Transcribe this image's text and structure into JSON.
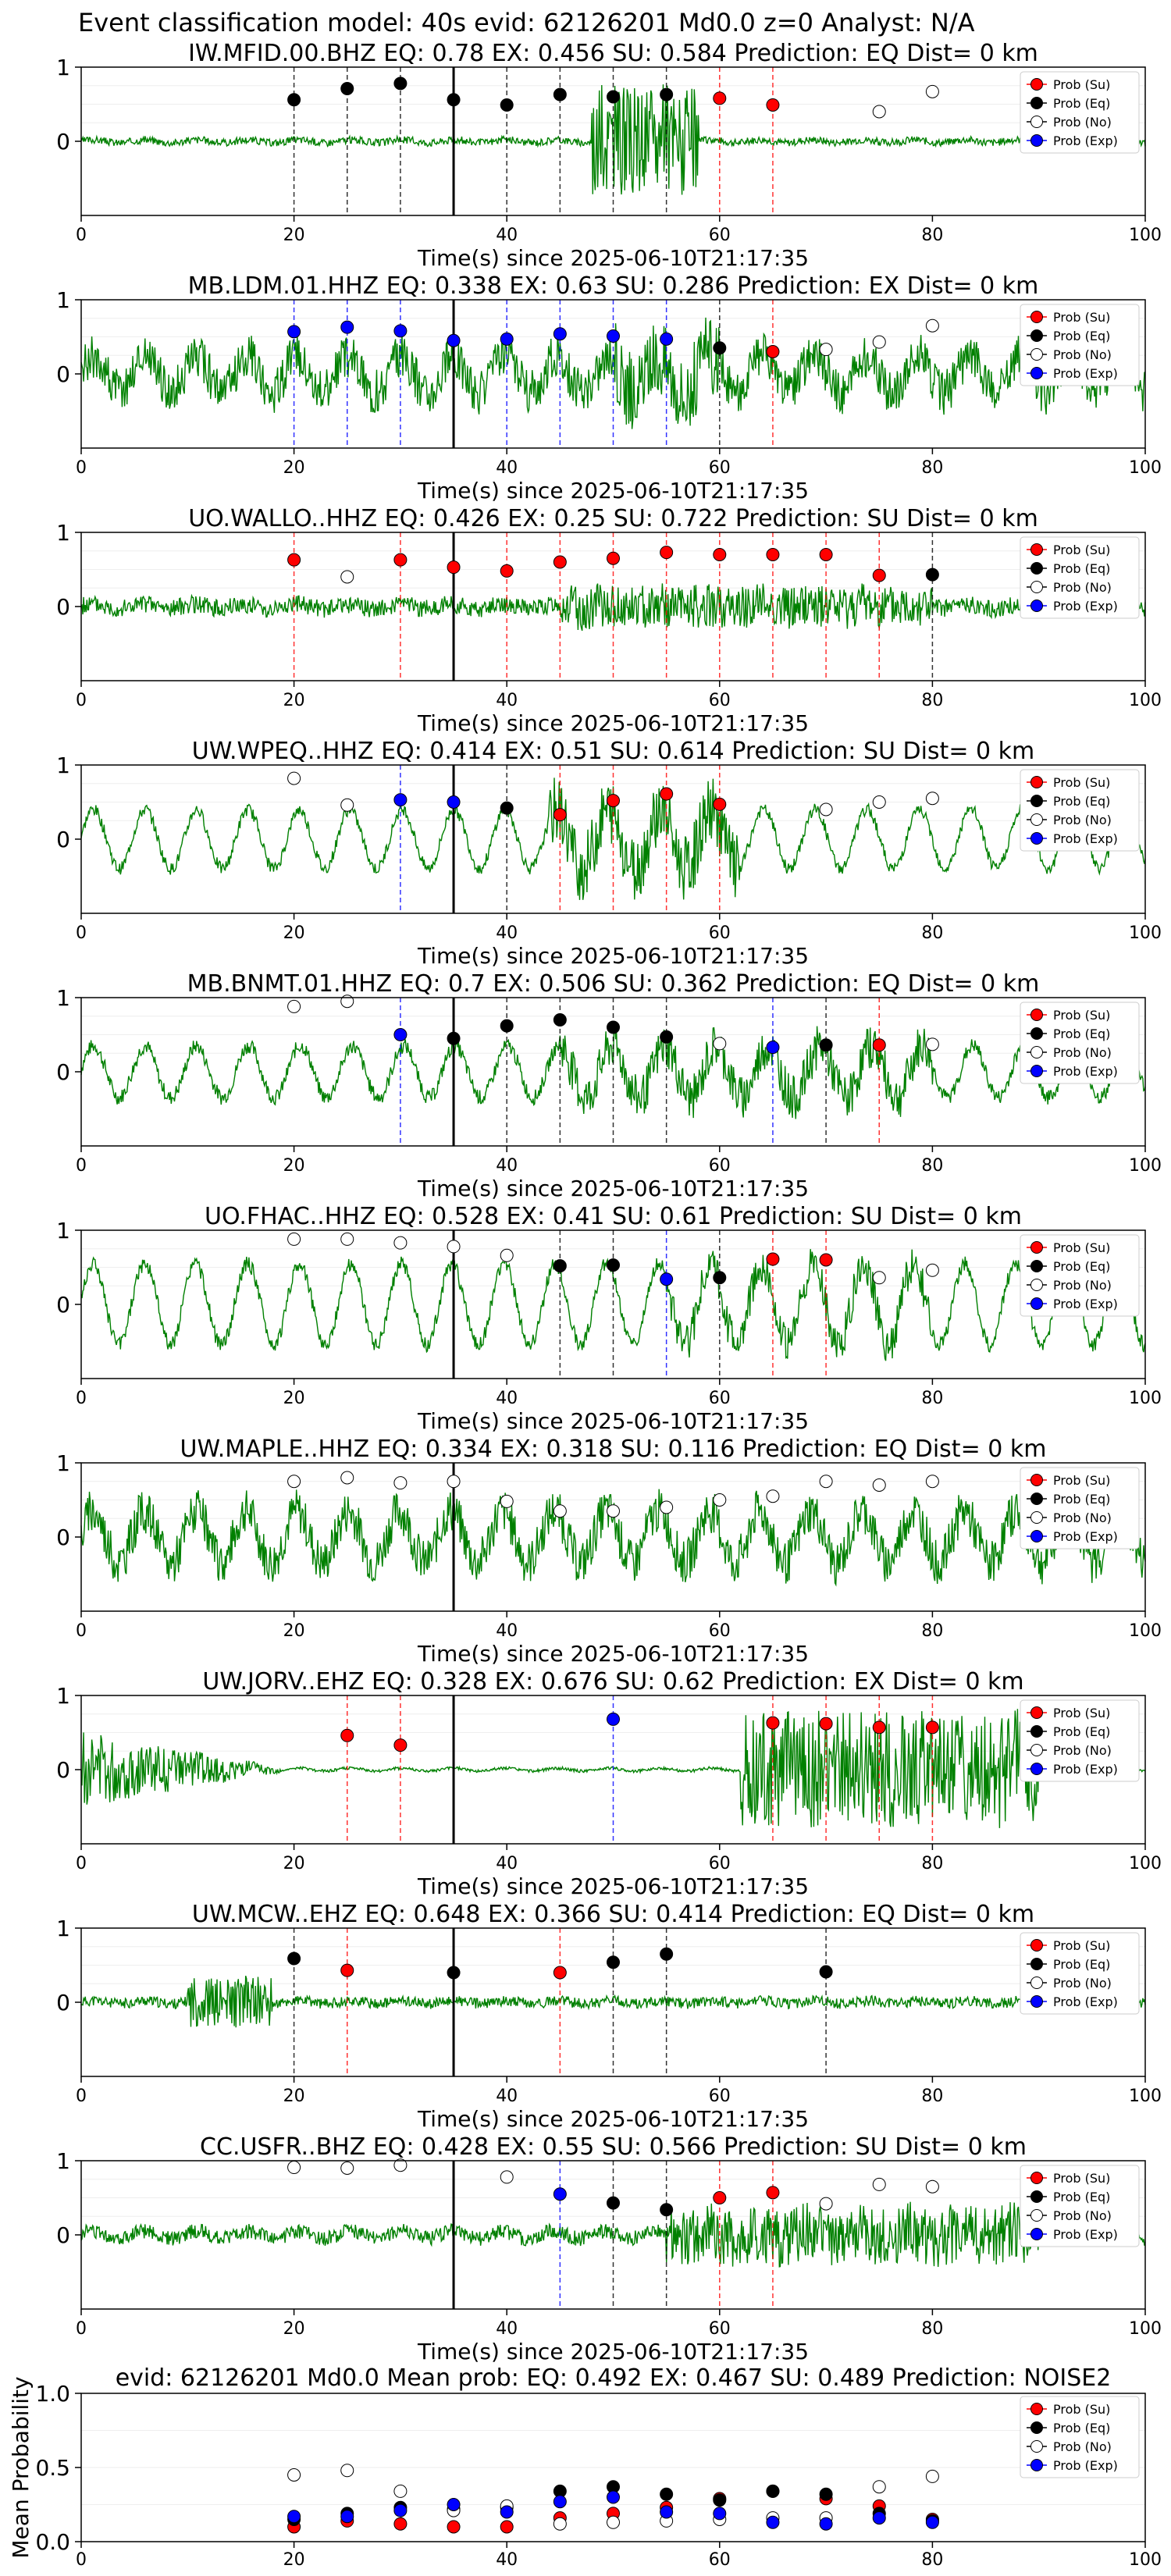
{
  "figure_title": "Event classification model: 40s evid: 62126201 Md0.0 z=0 Analyst: N/A",
  "legend_labels": [
    "Prob (Su)",
    "Prob (Eq)",
    "Prob (No)",
    "Prob (Exp)"
  ],
  "colors": {
    "su": "#ff0000",
    "eq": "#000000",
    "no": "#ffffff",
    "exp": "#0000ff",
    "waveform": "#008000"
  },
  "chart_data": [
    {
      "type": "line+scatter",
      "title": "IW.MFID.00.BHZ   EQ: 0.78   EX: 0.456   SU: 0.584   Prediction: EQ    Dist= 0 km",
      "xlabel": "Time(s) since 2025-06-10T21:17:35",
      "xlim": [
        0,
        100
      ],
      "ylim": [
        -1,
        1
      ],
      "xticks": [
        "0",
        "20",
        "40",
        "60",
        "80",
        "100"
      ],
      "yticks": [
        "0",
        "1"
      ],
      "arrival_time": 35,
      "waveform": {
        "amp": 0.05,
        "burst": [
          48,
          58,
          0.75
        ],
        "osc": 0.02
      },
      "points": [
        {
          "t": 20,
          "p": 0.56,
          "cls": "eq"
        },
        {
          "t": 25,
          "p": 0.71,
          "cls": "eq"
        },
        {
          "t": 30,
          "p": 0.78,
          "cls": "eq"
        },
        {
          "t": 35,
          "p": 0.56,
          "cls": "eq"
        },
        {
          "t": 40,
          "p": 0.49,
          "cls": "eq"
        },
        {
          "t": 45,
          "p": 0.63,
          "cls": "eq"
        },
        {
          "t": 50,
          "p": 0.6,
          "cls": "eq"
        },
        {
          "t": 55,
          "p": 0.63,
          "cls": "eq"
        },
        {
          "t": 60,
          "p": 0.58,
          "cls": "su"
        },
        {
          "t": 65,
          "p": 0.49,
          "cls": "su"
        },
        {
          "t": 75,
          "p": 0.4,
          "cls": "no"
        },
        {
          "t": 80,
          "p": 0.67,
          "cls": "no"
        }
      ]
    },
    {
      "type": "line+scatter",
      "title": "MB.LDM.01.HHZ   EQ: 0.338   EX: 0.63   SU: 0.286   Prediction: EX    Dist= 0 km",
      "xlabel": "Time(s) since 2025-06-10T21:17:35",
      "xlim": [
        0,
        100
      ],
      "ylim": [
        -1,
        1
      ],
      "xticks": [
        "0",
        "20",
        "40",
        "60",
        "80",
        "100"
      ],
      "yticks": [
        "0",
        "1"
      ],
      "arrival_time": 35,
      "waveform": {
        "amp": 0.3,
        "burst": [
          50,
          60,
          0.55
        ],
        "osc": 0.25
      },
      "points": [
        {
          "t": 20,
          "p": 0.57,
          "cls": "exp"
        },
        {
          "t": 25,
          "p": 0.63,
          "cls": "exp"
        },
        {
          "t": 30,
          "p": 0.58,
          "cls": "exp"
        },
        {
          "t": 35,
          "p": 0.45,
          "cls": "exp"
        },
        {
          "t": 40,
          "p": 0.47,
          "cls": "exp"
        },
        {
          "t": 45,
          "p": 0.54,
          "cls": "exp"
        },
        {
          "t": 50,
          "p": 0.51,
          "cls": "exp"
        },
        {
          "t": 55,
          "p": 0.47,
          "cls": "exp"
        },
        {
          "t": 60,
          "p": 0.35,
          "cls": "eq"
        },
        {
          "t": 65,
          "p": 0.3,
          "cls": "su"
        },
        {
          "t": 70,
          "p": 0.33,
          "cls": "no"
        },
        {
          "t": 75,
          "p": 0.43,
          "cls": "no"
        },
        {
          "t": 80,
          "p": 0.65,
          "cls": "no"
        }
      ]
    },
    {
      "type": "line+scatter",
      "title": "UO.WALLO..HHZ   EQ: 0.426   EX: 0.25   SU: 0.722   Prediction: SU    Dist= 0 km",
      "xlabel": "Time(s) since 2025-06-10T21:17:35",
      "xlim": [
        0,
        100
      ],
      "ylim": [
        -1,
        1
      ],
      "xticks": [
        "0",
        "20",
        "40",
        "60",
        "80",
        "100"
      ],
      "yticks": [
        "0",
        "1"
      ],
      "arrival_time": 35,
      "waveform": {
        "amp": 0.12,
        "burst": [
          45,
          80,
          0.3
        ],
        "osc": 0.03
      },
      "points": [
        {
          "t": 20,
          "p": 0.63,
          "cls": "su"
        },
        {
          "t": 25,
          "p": 0.4,
          "cls": "no"
        },
        {
          "t": 30,
          "p": 0.63,
          "cls": "su"
        },
        {
          "t": 35,
          "p": 0.53,
          "cls": "su"
        },
        {
          "t": 40,
          "p": 0.48,
          "cls": "su"
        },
        {
          "t": 45,
          "p": 0.6,
          "cls": "su"
        },
        {
          "t": 50,
          "p": 0.65,
          "cls": "su"
        },
        {
          "t": 55,
          "p": 0.73,
          "cls": "su"
        },
        {
          "t": 60,
          "p": 0.7,
          "cls": "su"
        },
        {
          "t": 65,
          "p": 0.7,
          "cls": "su"
        },
        {
          "t": 70,
          "p": 0.7,
          "cls": "su"
        },
        {
          "t": 75,
          "p": 0.42,
          "cls": "su"
        },
        {
          "t": 80,
          "p": 0.43,
          "cls": "eq"
        }
      ]
    },
    {
      "type": "line+scatter",
      "title": "UW.WPEQ..HHZ   EQ: 0.414   EX: 0.51   SU: 0.614   Prediction: SU    Dist= 0 km",
      "xlabel": "Time(s) since 2025-06-10T21:17:35",
      "xlim": [
        0,
        100
      ],
      "ylim": [
        -1,
        1
      ],
      "xticks": [
        "0",
        "20",
        "40",
        "60",
        "80",
        "100"
      ],
      "yticks": [
        "0",
        "1"
      ],
      "arrival_time": 35,
      "waveform": {
        "amp": 0.08,
        "burst": [
          44,
          62,
          0.45
        ],
        "osc": 0.4
      },
      "points": [
        {
          "t": 20,
          "p": 0.82,
          "cls": "no"
        },
        {
          "t": 25,
          "p": 0.46,
          "cls": "no"
        },
        {
          "t": 30,
          "p": 0.53,
          "cls": "exp"
        },
        {
          "t": 35,
          "p": 0.5,
          "cls": "exp"
        },
        {
          "t": 40,
          "p": 0.42,
          "cls": "eq"
        },
        {
          "t": 45,
          "p": 0.33,
          "cls": "su"
        },
        {
          "t": 50,
          "p": 0.52,
          "cls": "su"
        },
        {
          "t": 55,
          "p": 0.61,
          "cls": "su"
        },
        {
          "t": 60,
          "p": 0.47,
          "cls": "su"
        },
        {
          "t": 70,
          "p": 0.4,
          "cls": "no"
        },
        {
          "t": 75,
          "p": 0.5,
          "cls": "no"
        },
        {
          "t": 80,
          "p": 0.55,
          "cls": "no"
        }
      ]
    },
    {
      "type": "line+scatter",
      "title": "MB.BNMT.01.HHZ   EQ: 0.7   EX: 0.506   SU: 0.362   Prediction: EQ    Dist= 0 km",
      "xlabel": "Time(s) since 2025-06-10T21:17:35",
      "xlim": [
        0,
        100
      ],
      "ylim": [
        -1,
        1
      ],
      "xticks": [
        "0",
        "20",
        "40",
        "60",
        "80",
        "100"
      ],
      "yticks": [
        "0",
        "1"
      ],
      "arrival_time": 35,
      "waveform": {
        "amp": 0.1,
        "burst": [
          45,
          80,
          0.3
        ],
        "osc": 0.35
      },
      "points": [
        {
          "t": 20,
          "p": 0.88,
          "cls": "no"
        },
        {
          "t": 25,
          "p": 0.95,
          "cls": "no"
        },
        {
          "t": 30,
          "p": 0.5,
          "cls": "exp"
        },
        {
          "t": 35,
          "p": 0.45,
          "cls": "eq"
        },
        {
          "t": 40,
          "p": 0.62,
          "cls": "eq"
        },
        {
          "t": 45,
          "p": 0.7,
          "cls": "eq"
        },
        {
          "t": 50,
          "p": 0.6,
          "cls": "eq"
        },
        {
          "t": 55,
          "p": 0.47,
          "cls": "eq"
        },
        {
          "t": 60,
          "p": 0.38,
          "cls": "no"
        },
        {
          "t": 65,
          "p": 0.33,
          "cls": "exp"
        },
        {
          "t": 70,
          "p": 0.36,
          "cls": "eq"
        },
        {
          "t": 75,
          "p": 0.36,
          "cls": "su"
        },
        {
          "t": 80,
          "p": 0.37,
          "cls": "no"
        }
      ]
    },
    {
      "type": "line+scatter",
      "title": "UO.FHAC..HHZ   EQ: 0.528   EX: 0.41   SU: 0.61   Prediction: SU    Dist= 0 km",
      "xlabel": "Time(s) since 2025-06-10T21:17:35",
      "xlim": [
        0,
        100
      ],
      "ylim": [
        -1,
        1
      ],
      "xticks": [
        "0",
        "20",
        "40",
        "60",
        "80",
        "100"
      ],
      "yticks": [
        "0",
        "1"
      ],
      "arrival_time": 35,
      "waveform": {
        "amp": 0.1,
        "burst": [
          55,
          80,
          0.25
        ],
        "osc": 0.55
      },
      "points": [
        {
          "t": 20,
          "p": 0.88,
          "cls": "no"
        },
        {
          "t": 25,
          "p": 0.88,
          "cls": "no"
        },
        {
          "t": 30,
          "p": 0.83,
          "cls": "no"
        },
        {
          "t": 35,
          "p": 0.78,
          "cls": "no"
        },
        {
          "t": 40,
          "p": 0.66,
          "cls": "no"
        },
        {
          "t": 45,
          "p": 0.52,
          "cls": "eq"
        },
        {
          "t": 50,
          "p": 0.53,
          "cls": "eq"
        },
        {
          "t": 55,
          "p": 0.34,
          "cls": "exp"
        },
        {
          "t": 60,
          "p": 0.36,
          "cls": "eq"
        },
        {
          "t": 65,
          "p": 0.61,
          "cls": "su"
        },
        {
          "t": 70,
          "p": 0.6,
          "cls": "su"
        },
        {
          "t": 75,
          "p": 0.36,
          "cls": "no"
        },
        {
          "t": 80,
          "p": 0.46,
          "cls": "no"
        }
      ]
    },
    {
      "type": "line+scatter",
      "title": "UW.MAPLE..HHZ   EQ: 0.334   EX: 0.318   SU: 0.116   Prediction: EQ    Dist= 0 km",
      "xlabel": "Time(s) since 2025-06-10T21:17:35",
      "xlim": [
        0,
        100
      ],
      "ylim": [
        -1,
        1
      ],
      "xticks": [
        "0",
        "20",
        "40",
        "60",
        "80",
        "100"
      ],
      "yticks": [
        "0",
        "1"
      ],
      "arrival_time": 35,
      "waveform": {
        "amp": 0.3,
        "burst": [
          0,
          0,
          0
        ],
        "osc": 0.35
      },
      "points": [
        {
          "t": 20,
          "p": 0.75,
          "cls": "no"
        },
        {
          "t": 25,
          "p": 0.8,
          "cls": "no"
        },
        {
          "t": 30,
          "p": 0.73,
          "cls": "no"
        },
        {
          "t": 35,
          "p": 0.75,
          "cls": "no"
        },
        {
          "t": 40,
          "p": 0.48,
          "cls": "no"
        },
        {
          "t": 45,
          "p": 0.35,
          "cls": "no"
        },
        {
          "t": 50,
          "p": 0.35,
          "cls": "no"
        },
        {
          "t": 55,
          "p": 0.4,
          "cls": "no"
        },
        {
          "t": 60,
          "p": 0.5,
          "cls": "no"
        },
        {
          "t": 65,
          "p": 0.55,
          "cls": "no"
        },
        {
          "t": 70,
          "p": 0.75,
          "cls": "no"
        },
        {
          "t": 75,
          "p": 0.7,
          "cls": "no"
        },
        {
          "t": 80,
          "p": 0.75,
          "cls": "no"
        }
      ]
    },
    {
      "type": "line+scatter",
      "title": "UW.JORV..EHZ   EQ: 0.328   EX: 0.676   SU: 0.62   Prediction: EX    Dist= 0 km",
      "xlabel": "Time(s) since 2025-06-10T21:17:35",
      "xlim": [
        0,
        100
      ],
      "ylim": [
        -1,
        1
      ],
      "xticks": [
        "0",
        "20",
        "40",
        "60",
        "80",
        "100"
      ],
      "yticks": [
        "0",
        "1"
      ],
      "arrival_time": 35,
      "waveform": {
        "amp": 0.02,
        "burst": [
          62,
          90,
          0.8
        ],
        "osc": 0.02,
        "early": [
          0,
          20,
          0.5
        ]
      },
      "points": [
        {
          "t": 25,
          "p": 0.46,
          "cls": "su"
        },
        {
          "t": 30,
          "p": 0.33,
          "cls": "su"
        },
        {
          "t": 50,
          "p": 0.68,
          "cls": "exp"
        },
        {
          "t": 65,
          "p": 0.63,
          "cls": "su"
        },
        {
          "t": 70,
          "p": 0.62,
          "cls": "su"
        },
        {
          "t": 75,
          "p": 0.57,
          "cls": "su"
        },
        {
          "t": 80,
          "p": 0.57,
          "cls": "su"
        }
      ]
    },
    {
      "type": "line+scatter",
      "title": "UW.MCW..EHZ   EQ: 0.648   EX: 0.366   SU: 0.414   Prediction: EQ    Dist= 0 km",
      "xlabel": "Time(s) since 2025-06-10T21:17:35",
      "xlim": [
        0,
        100
      ],
      "ylim": [
        -1,
        1
      ],
      "xticks": [
        "0",
        "20",
        "40",
        "60",
        "80",
        "100"
      ],
      "yticks": [
        "0",
        "1"
      ],
      "arrival_time": 35,
      "waveform": {
        "amp": 0.07,
        "burst": [
          10,
          18,
          0.35
        ],
        "osc": 0.02
      },
      "points": [
        {
          "t": 20,
          "p": 0.59,
          "cls": "eq"
        },
        {
          "t": 25,
          "p": 0.43,
          "cls": "su"
        },
        {
          "t": 35,
          "p": 0.4,
          "cls": "eq"
        },
        {
          "t": 45,
          "p": 0.4,
          "cls": "su"
        },
        {
          "t": 50,
          "p": 0.54,
          "cls": "eq"
        },
        {
          "t": 55,
          "p": 0.65,
          "cls": "eq"
        },
        {
          "t": 70,
          "p": 0.41,
          "cls": "eq"
        }
      ]
    },
    {
      "type": "line+scatter",
      "title": "CC.USFR..BHZ   EQ: 0.428   EX: 0.55   SU: 0.566   Prediction: SU    Dist= 0 km",
      "xlabel": "Time(s) since 2025-06-10T21:17:35",
      "xlim": [
        0,
        100
      ],
      "ylim": [
        -1,
        1
      ],
      "xticks": [
        "0",
        "20",
        "40",
        "60",
        "80",
        "100"
      ],
      "yticks": [
        "0",
        "1"
      ],
      "arrival_time": 35,
      "waveform": {
        "amp": 0.1,
        "burst": [
          55,
          90,
          0.4
        ],
        "osc": 0.05
      },
      "points": [
        {
          "t": 20,
          "p": 0.91,
          "cls": "no"
        },
        {
          "t": 25,
          "p": 0.9,
          "cls": "no"
        },
        {
          "t": 30,
          "p": 0.94,
          "cls": "no"
        },
        {
          "t": 40,
          "p": 0.78,
          "cls": "no"
        },
        {
          "t": 45,
          "p": 0.55,
          "cls": "exp"
        },
        {
          "t": 50,
          "p": 0.43,
          "cls": "eq"
        },
        {
          "t": 55,
          "p": 0.34,
          "cls": "eq"
        },
        {
          "t": 60,
          "p": 0.5,
          "cls": "su"
        },
        {
          "t": 65,
          "p": 0.57,
          "cls": "su"
        },
        {
          "t": 70,
          "p": 0.42,
          "cls": "no"
        },
        {
          "t": 75,
          "p": 0.68,
          "cls": "no"
        },
        {
          "t": 80,
          "p": 0.65,
          "cls": "no"
        }
      ]
    },
    {
      "type": "scatter",
      "title": "evid: 62126201  Md0.0   Mean prob:   EQ: 0.492  EX: 0.467  SU: 0.489   Prediction: NOISE2",
      "xlabel": "",
      "ylabel": "Mean Probability",
      "xlim": [
        0,
        100
      ],
      "ylim": [
        0,
        1
      ],
      "xticks": [
        "0",
        "20",
        "40",
        "60",
        "80",
        "100"
      ],
      "yticks": [
        "0.0",
        "0.5",
        "1.0"
      ],
      "series": [
        {
          "name": "Prob (Su)",
          "cls": "su",
          "x": [
            20,
            25,
            30,
            35,
            40,
            45,
            50,
            55,
            60,
            65,
            70,
            75,
            80
          ],
          "y": [
            0.1,
            0.14,
            0.12,
            0.1,
            0.1,
            0.16,
            0.19,
            0.23,
            0.29,
            0.34,
            0.29,
            0.24,
            0.15
          ]
        },
        {
          "name": "Prob (Eq)",
          "cls": "eq",
          "x": [
            20,
            25,
            30,
            35,
            40,
            45,
            50,
            55,
            60,
            65,
            70,
            75,
            80
          ],
          "y": [
            0.15,
            0.19,
            0.23,
            0.22,
            0.23,
            0.34,
            0.37,
            0.32,
            0.28,
            0.34,
            0.32,
            0.19,
            0.14
          ]
        },
        {
          "name": "Prob (No)",
          "cls": "no",
          "x": [
            20,
            25,
            30,
            35,
            40,
            45,
            50,
            55,
            60,
            65,
            70,
            75,
            80
          ],
          "y": [
            0.45,
            0.48,
            0.34,
            0.21,
            0.24,
            0.12,
            0.13,
            0.14,
            0.15,
            0.16,
            0.16,
            0.37,
            0.44
          ]
        },
        {
          "name": "Prob (Exp)",
          "cls": "exp",
          "x": [
            20,
            25,
            30,
            35,
            40,
            45,
            50,
            55,
            60,
            65,
            70,
            75,
            80
          ],
          "y": [
            0.17,
            0.17,
            0.21,
            0.25,
            0.2,
            0.27,
            0.3,
            0.2,
            0.19,
            0.13,
            0.12,
            0.16,
            0.13
          ]
        }
      ]
    }
  ]
}
